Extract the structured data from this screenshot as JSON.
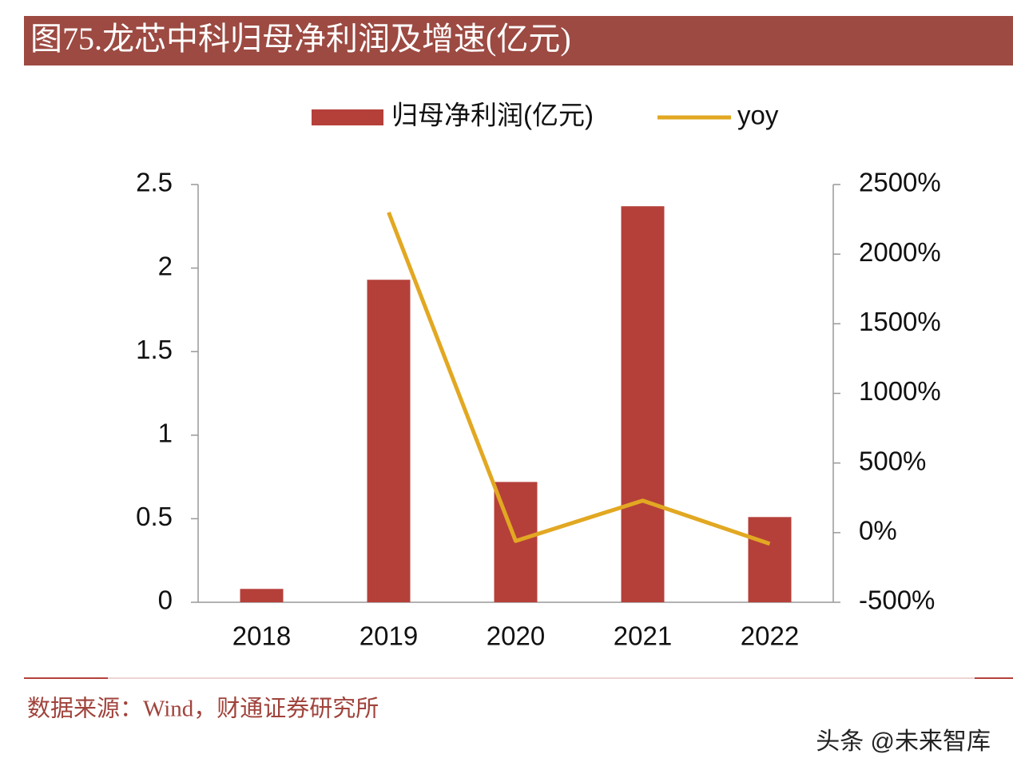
{
  "chart_data": {
    "type": "bar-line",
    "title": "图75.龙芯中科归母净利润及增速(亿元)",
    "categories": [
      "2018",
      "2019",
      "2020",
      "2021",
      "2022"
    ],
    "series": [
      {
        "name": "归母净利润(亿元)",
        "color": "#b5403a",
        "type": "bar",
        "values": [
          0.08,
          1.93,
          0.72,
          2.37,
          0.51
        ]
      },
      {
        "name": "yoy",
        "color": "#e2a822",
        "type": "line",
        "axis": "y2",
        "values": [
          null,
          2300,
          -60,
          230,
          -80
        ]
      }
    ],
    "ylim": [
      0,
      2.5
    ],
    "yticks": [
      0,
      0.5,
      1,
      1.5,
      2,
      2.5
    ],
    "y2lim": [
      -500,
      2500
    ],
    "y2ticks": [
      {
        "value": -500,
        "label": "-500%"
      },
      {
        "value": 0,
        "label": "0%"
      },
      {
        "value": 500,
        "label": "500%"
      },
      {
        "value": 1000,
        "label": "1000%"
      },
      {
        "value": 1500,
        "label": "1500%"
      },
      {
        "value": 2000,
        "label": "2000%"
      },
      {
        "value": 2500,
        "label": "2500%"
      }
    ],
    "legend": "top",
    "source": "数据来源：Wind，财通证券研究所",
    "watermark": "头条 @未来智库"
  }
}
